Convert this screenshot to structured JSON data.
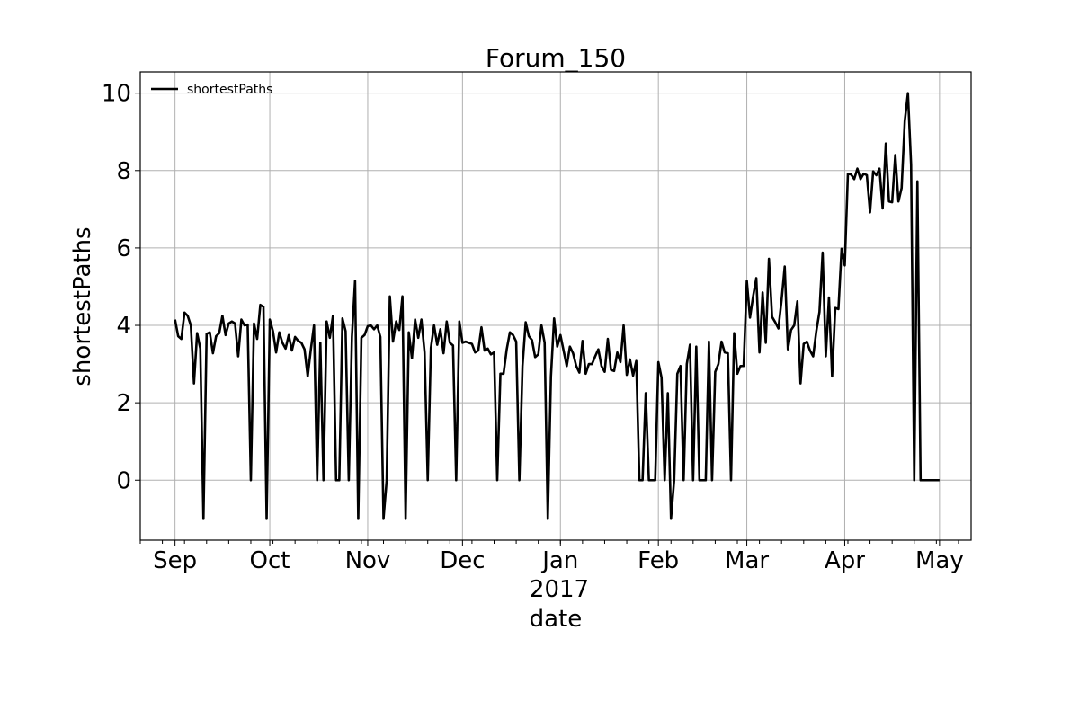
{
  "chart_data": {
    "type": "line",
    "title": "Forum_150",
    "xlabel": "date",
    "ylabel": "shortestPaths",
    "x_year_label": "2017",
    "x_month_ticks": [
      {
        "date": "2016-09-01",
        "label": "Sep"
      },
      {
        "date": "2016-10-01",
        "label": "Oct"
      },
      {
        "date": "2016-11-01",
        "label": "Nov"
      },
      {
        "date": "2016-12-01",
        "label": "Dec"
      },
      {
        "date": "2017-01-01",
        "label": "Jan"
      },
      {
        "date": "2017-02-01",
        "label": "Feb"
      },
      {
        "date": "2017-03-01",
        "label": "Mar"
      },
      {
        "date": "2017-04-01",
        "label": "Apr"
      },
      {
        "date": "2017-05-01",
        "label": "May"
      }
    ],
    "y_ticks": [
      0,
      2,
      4,
      6,
      8,
      10
    ],
    "xlim": [
      "2016-08-21",
      "2017-05-11"
    ],
    "ylim": [
      -1.55,
      10.55
    ],
    "grid": true,
    "legend": "top-left",
    "series": [
      {
        "name": "shortestPaths",
        "color": "#000000",
        "start": "2016-09-01",
        "values": [
          4.15,
          3.72,
          3.65,
          4.33,
          4.25,
          4.0,
          2.5,
          3.8,
          3.4,
          -1.0,
          3.78,
          3.82,
          3.28,
          3.72,
          3.8,
          4.25,
          3.75,
          4.05,
          4.1,
          4.05,
          3.2,
          4.15,
          4.0,
          4.02,
          0.0,
          4.05,
          3.65,
          4.53,
          4.48,
          -1.0,
          4.15,
          3.85,
          3.3,
          3.82,
          3.55,
          3.4,
          3.75,
          3.35,
          3.7,
          3.6,
          3.55,
          3.38,
          2.68,
          3.38,
          4.0,
          0.0,
          3.55,
          0.0,
          4.1,
          3.68,
          4.25,
          0.0,
          0.0,
          4.18,
          3.85,
          0.0,
          3.7,
          5.15,
          -1.0,
          3.68,
          3.75,
          3.98,
          4.0,
          3.9,
          4.0,
          3.7,
          -1.0,
          0.0,
          4.75,
          3.58,
          4.1,
          3.88,
          4.75,
          -1.0,
          3.82,
          3.15,
          4.15,
          3.68,
          4.15,
          3.3,
          0.0,
          3.42,
          4.0,
          3.5,
          3.9,
          3.28,
          4.1,
          3.55,
          3.48,
          0.0,
          4.1,
          3.55,
          3.58,
          3.55,
          3.52,
          3.3,
          3.35,
          3.95,
          3.35,
          3.4,
          3.25,
          3.3,
          0.0,
          2.75,
          2.75,
          3.38,
          3.82,
          3.75,
          3.58,
          0.0,
          2.95,
          4.08,
          3.72,
          3.62,
          3.18,
          3.25,
          4.0,
          3.55,
          -1.0,
          2.68,
          4.18,
          3.45,
          3.75,
          3.35,
          2.95,
          3.45,
          3.28,
          2.95,
          2.78,
          3.6,
          2.75,
          3.0,
          3.0,
          3.2,
          3.38,
          2.95,
          2.8,
          3.65,
          2.85,
          2.82,
          3.3,
          3.05,
          4.0,
          2.72,
          3.12,
          2.7,
          3.08,
          0.0,
          0.0,
          2.25,
          0.0,
          0.0,
          0.0,
          3.05,
          2.65,
          0.0,
          2.25,
          -1.0,
          0.0,
          2.75,
          2.95,
          0.0,
          3.0,
          3.5,
          0.0,
          3.45,
          0.0,
          0.0,
          0.0,
          3.58,
          0.0,
          2.8,
          3.0,
          3.58,
          3.3,
          3.28,
          0.0,
          3.8,
          2.75,
          2.95,
          2.95,
          5.15,
          4.2,
          4.75,
          5.22,
          3.3,
          4.85,
          3.55,
          5.72,
          4.22,
          4.08,
          3.92,
          4.65,
          5.52,
          3.38,
          3.88,
          4.0,
          4.62,
          2.5,
          3.52,
          3.58,
          3.35,
          3.2,
          3.85,
          4.35,
          5.88,
          3.2,
          4.72,
          2.68,
          4.45,
          4.42,
          5.98,
          5.55,
          7.92,
          7.9,
          7.78,
          8.05,
          7.78,
          7.92,
          7.88,
          6.92,
          7.98,
          7.88,
          8.05,
          7.02,
          8.7,
          7.2,
          7.18,
          8.4,
          7.2,
          7.55,
          9.28,
          10.0,
          8.15,
          0.0,
          7.72,
          0.0,
          0.0,
          0.0,
          0.0,
          0.0,
          0.0,
          0.0
        ]
      }
    ]
  }
}
